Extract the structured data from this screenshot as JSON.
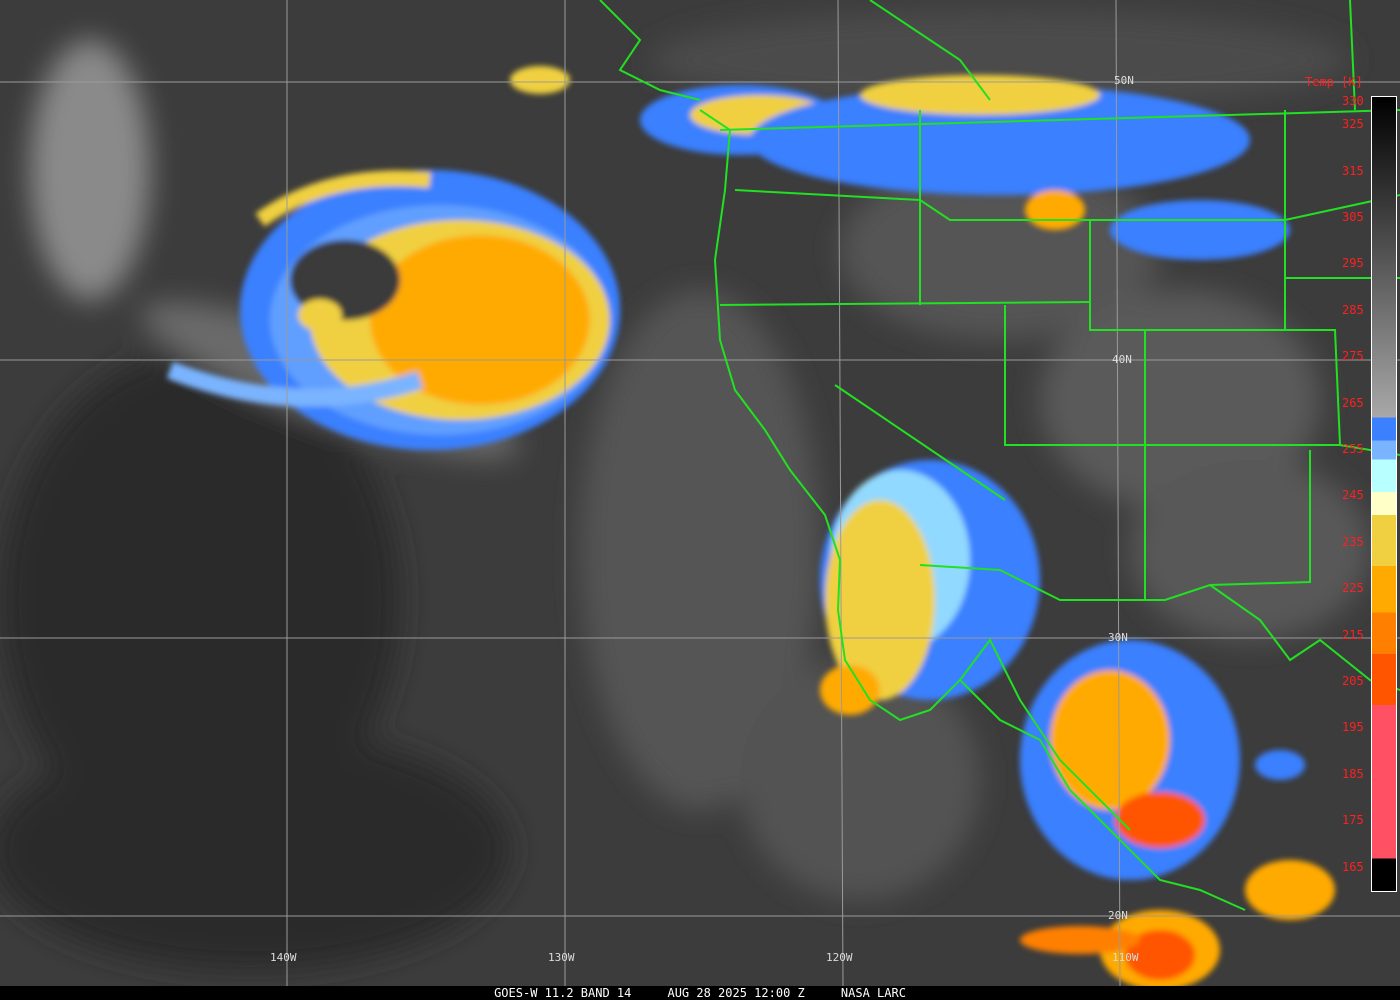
{
  "caption": {
    "satellite": "GOES-W 11.2 BAND 14",
    "datetime": "AUG 28 2025 12:00 Z",
    "source": "NASA LARC"
  },
  "colorbar": {
    "title": "Temp [K]",
    "labels": [
      "330",
      "325",
      "315",
      "305",
      "295",
      "285",
      "275",
      "265",
      "255",
      "245",
      "235",
      "225",
      "215",
      "205",
      "195",
      "185",
      "175",
      "165"
    ],
    "range_k": [
      165,
      330
    ],
    "stops": [
      {
        "from": 330,
        "to": 262,
        "color": "gradient #000000 to #a8a8a8"
      },
      {
        "from": 262,
        "to": 257,
        "color": "#3a80ff"
      },
      {
        "from": 257,
        "to": 253,
        "color": "#7ab4ff"
      },
      {
        "from": 253,
        "to": 246,
        "color": "#b8ffff"
      },
      {
        "from": 246,
        "to": 241,
        "color": "#ffffc8"
      },
      {
        "from": 241,
        "to": 230,
        "color": "#f0d040"
      },
      {
        "from": 230,
        "to": 220,
        "color": "#ffaa00"
      },
      {
        "from": 220,
        "to": 211,
        "color": "#ff8000"
      },
      {
        "from": 211,
        "to": 200,
        "color": "#ff5500"
      },
      {
        "from": 200,
        "to": 167,
        "color": "#ff5064"
      },
      {
        "from": 167,
        "to": 165,
        "color": "#000000"
      }
    ]
  },
  "grid": {
    "latitudes": [
      "50N",
      "40N",
      "30N",
      "20N"
    ],
    "longitudes": [
      "140W",
      "130W",
      "120W",
      "110W"
    ]
  },
  "colors": {
    "borders": "#22e022",
    "labels": "#ff2020",
    "grid": "#9a9a9a"
  }
}
